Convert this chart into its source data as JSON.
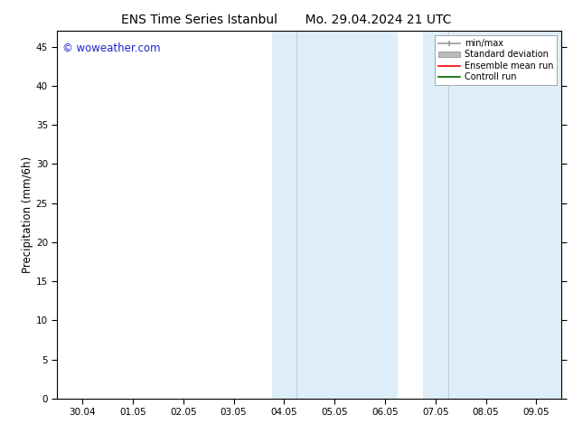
{
  "title_left": "ENS Time Series Istanbul",
  "title_right": "Mo. 29.04.2024 21 UTC",
  "ylabel": "Precipitation (mm/6h)",
  "ylim_min": 0,
  "ylim_max": 47,
  "yticks": [
    0,
    5,
    10,
    15,
    20,
    25,
    30,
    35,
    40,
    45
  ],
  "xtick_labels": [
    "30.04",
    "01.05",
    "02.05",
    "03.05",
    "04.05",
    "05.05",
    "06.05",
    "07.05",
    "08.05",
    "09.05"
  ],
  "xtick_positions": [
    0,
    1,
    2,
    3,
    4,
    5,
    6,
    7,
    8,
    9
  ],
  "xlim_min": -0.5,
  "xlim_max": 9.5,
  "shaded_regions": [
    {
      "xmin": 3.75,
      "xmax": 4.25,
      "color": "#ddeef8"
    },
    {
      "xmin": 4.25,
      "xmax": 6.25,
      "color": "#ddeef8"
    },
    {
      "xmin": 6.75,
      "xmax": 7.25,
      "color": "#ddeef8"
    },
    {
      "xmin": 7.25,
      "xmax": 9.5,
      "color": "#ddeef8"
    }
  ],
  "shaded_dividers": [
    4.25,
    7.25
  ],
  "watermark_text": "© woweather.com",
  "watermark_color": "#2222cc",
  "legend_labels": [
    "min/max",
    "Standard deviation",
    "Ensemble mean run",
    "Controll run"
  ],
  "legend_colors_line": [
    "#999999",
    "#bbbbbb",
    "#ff0000",
    "#006600"
  ],
  "background_color": "#ffffff",
  "tick_font_size": 7.5,
  "title_font_size": 10,
  "ylabel_font_size": 8.5
}
